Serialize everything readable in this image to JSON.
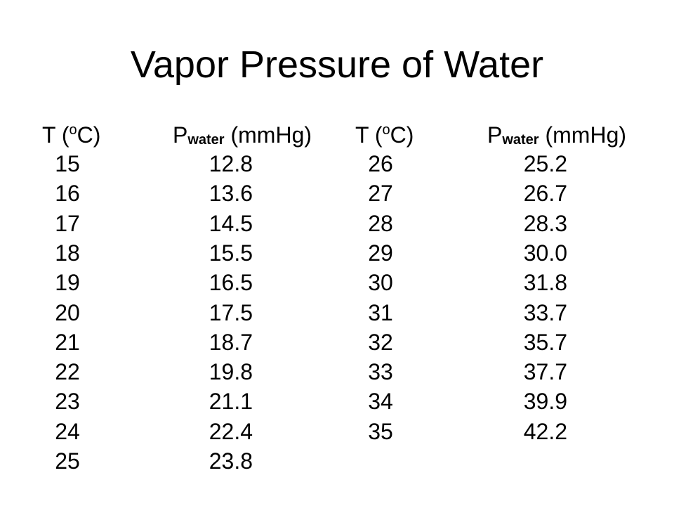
{
  "title": "Vapor Pressure of Water",
  "headers": {
    "t_prefix": "T (",
    "t_sup": "o",
    "t_suffix": "C)",
    "p_main": "P",
    "p_sub": "water",
    "p_unit": " (mmHg)"
  },
  "table": {
    "left": [
      {
        "t": "15",
        "p": "12.8"
      },
      {
        "t": "16",
        "p": "13.6"
      },
      {
        "t": "17",
        "p": "14.5"
      },
      {
        "t": "18",
        "p": "15.5"
      },
      {
        "t": "19",
        "p": "16.5"
      },
      {
        "t": "20",
        "p": "17.5"
      },
      {
        "t": "21",
        "p": "18.7"
      },
      {
        "t": "22",
        "p": "19.8"
      },
      {
        "t": "23",
        "p": "21.1"
      },
      {
        "t": "24",
        "p": "22.4"
      },
      {
        "t": "25",
        "p": "23.8"
      }
    ],
    "right": [
      {
        "t": "26",
        "p": "25.2"
      },
      {
        "t": "27",
        "p": "26.7"
      },
      {
        "t": "28",
        "p": "28.3"
      },
      {
        "t": "29",
        "p": "30.0"
      },
      {
        "t": "30",
        "p": "31.8"
      },
      {
        "t": "31",
        "p": "33.7"
      },
      {
        "t": "32",
        "p": "35.7"
      },
      {
        "t": "33",
        "p": "37.7"
      },
      {
        "t": "34",
        "p": "39.9"
      },
      {
        "t": "35",
        "p": "42.2"
      }
    ]
  }
}
